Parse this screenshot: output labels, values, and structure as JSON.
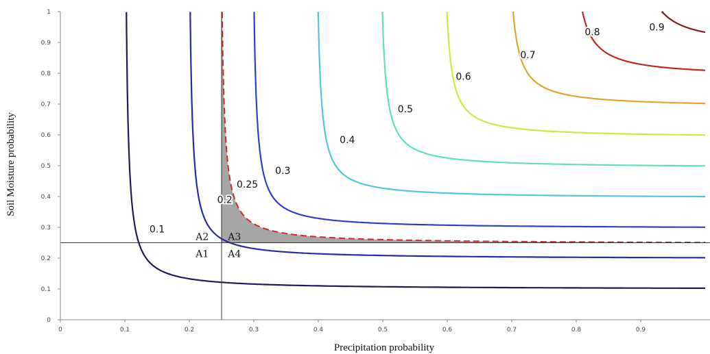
{
  "chart_data": {
    "type": "contour",
    "title": "",
    "xlabel": "Precipitation  probability",
    "ylabel": "Soil Moisture probability",
    "xlim": [
      0,
      1
    ],
    "ylim": [
      0,
      1
    ],
    "x_ticks": [
      "0",
      "0.1",
      "0.2",
      "0.3",
      "0.4",
      "0.5",
      "0.6",
      "0.7",
      "0.8",
      "0.9"
    ],
    "y_ticks": [
      "0",
      "0.1",
      "0.2",
      "0.3",
      "0.4",
      "0.5",
      "0.6",
      "0.7",
      "0.8",
      "0.9",
      "1"
    ],
    "threshold": {
      "x": 0.25,
      "y": 0.25
    },
    "contours": [
      {
        "label": "0.1",
        "level": 0.1,
        "color": "#1a1a5e",
        "dashed": false,
        "label_at": [
          0.15,
          0.295
        ]
      },
      {
        "label": "0.2",
        "level": 0.2,
        "color": "#2a2aa8",
        "dashed": false,
        "label_at": [
          0.255,
          0.39
        ]
      },
      {
        "label": "0.25",
        "level": 0.25,
        "color": "#cc2a2a",
        "dashed": true,
        "label_at": [
          0.29,
          0.44
        ]
      },
      {
        "label": "0.3",
        "level": 0.3,
        "color": "#2f3fc8",
        "dashed": false,
        "label_at": [
          0.345,
          0.485
        ]
      },
      {
        "label": "0.4",
        "level": 0.4,
        "color": "#4ec6e2",
        "dashed": false,
        "label_at": [
          0.445,
          0.585
        ]
      },
      {
        "label": "0.5",
        "level": 0.5,
        "color": "#5fe0c0",
        "dashed": false,
        "label_at": [
          0.535,
          0.685
        ]
      },
      {
        "label": "0.6",
        "level": 0.6,
        "color": "#c6ec4c",
        "dashed": false,
        "label_at": [
          0.625,
          0.79
        ]
      },
      {
        "label": "0.7",
        "level": 0.7,
        "color": "#e8a22a",
        "dashed": false,
        "label_at": [
          0.725,
          0.86
        ]
      },
      {
        "label": "0.8",
        "level": 0.8,
        "color": "#c0281e",
        "dashed": false,
        "label_at": [
          0.825,
          0.935
        ]
      },
      {
        "label": "0.9",
        "level": 0.9,
        "color": "#8b1a1a",
        "dashed": false,
        "label_at": [
          0.925,
          0.95
        ]
      }
    ],
    "regions": [
      {
        "label": "A1",
        "at": [
          0.22,
          0.215
        ]
      },
      {
        "label": "A2",
        "at": [
          0.22,
          0.27
        ]
      },
      {
        "label": "A3",
        "at": [
          0.27,
          0.27
        ]
      },
      {
        "label": "A4",
        "at": [
          0.27,
          0.215
        ]
      }
    ],
    "shaded_region": {
      "description_color": "#a6a6a6",
      "between_levels": [
        0.2,
        0.25
      ]
    }
  }
}
